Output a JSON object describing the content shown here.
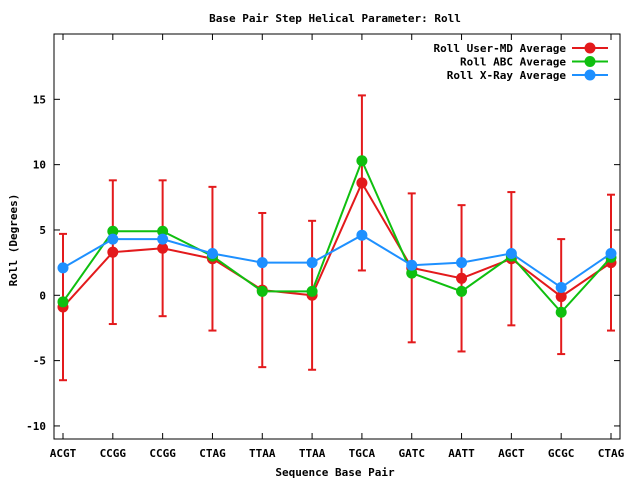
{
  "chart_data": {
    "type": "line",
    "title": "Base Pair Step Helical Parameter: Roll",
    "xlabel": "Sequence Base Pair",
    "ylabel": "Roll (Degrees)",
    "categories": [
      "ACGT",
      "CCGG",
      "CCGG",
      "CTAG",
      "TTAA",
      "TTAA",
      "TGCA",
      "GATC",
      "AATT",
      "AGCT",
      "GCGC",
      "CTAG"
    ],
    "ylim": [
      -11,
      20
    ],
    "yticks": [
      -10,
      -5,
      0,
      5,
      10,
      15
    ],
    "legend_position": "top-right",
    "grid": false,
    "series": [
      {
        "name": "Roll User-MD Average",
        "color": "#e31a1c",
        "values": [
          -0.9,
          3.3,
          3.6,
          2.8,
          0.4,
          0.0,
          8.6,
          2.1,
          1.3,
          2.8,
          -0.1,
          2.5
        ],
        "error": [
          5.6,
          5.5,
          5.2,
          5.5,
          5.9,
          5.7,
          6.7,
          5.7,
          5.6,
          5.1,
          4.4,
          5.2
        ]
      },
      {
        "name": "Roll ABC Average",
        "color": "#0fbf0f",
        "values": [
          -0.5,
          4.9,
          4.9,
          3.0,
          0.3,
          0.3,
          10.3,
          1.7,
          0.3,
          3.0,
          -1.3,
          2.9
        ]
      },
      {
        "name": "Roll X-Ray Average",
        "color": "#1e90ff",
        "values": [
          2.1,
          4.3,
          4.3,
          3.2,
          2.5,
          2.5,
          4.6,
          2.3,
          2.5,
          3.2,
          0.6,
          3.2
        ]
      }
    ]
  }
}
